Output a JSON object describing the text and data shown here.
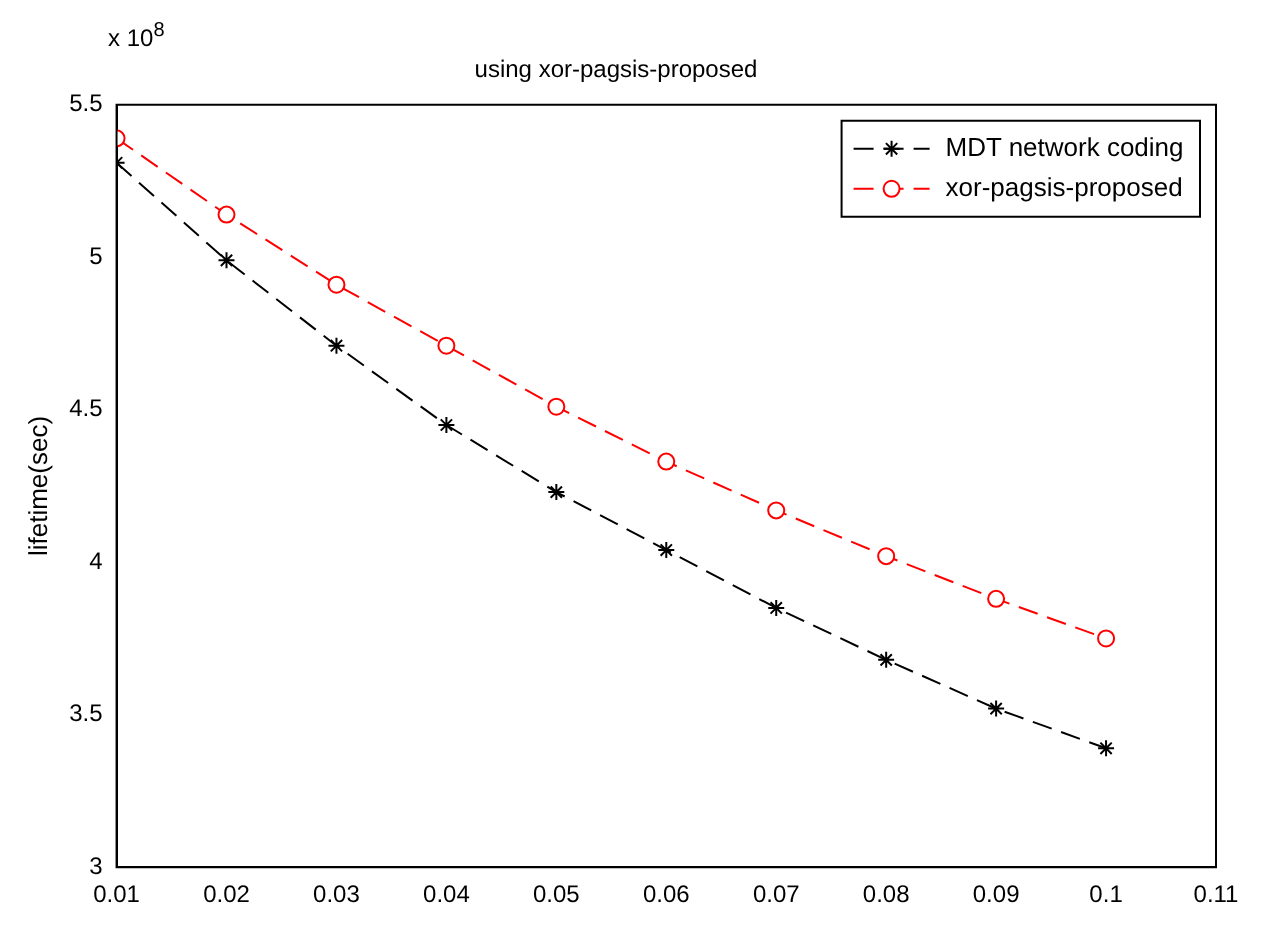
{
  "chart_data": {
    "type": "line",
    "title": "using xor-pagsis-proposed",
    "ylabel": "lifetime(sec)",
    "annotations": [
      "x 10$^{8}$"
    ],
    "x": [
      0.01,
      0.02,
      0.03,
      0.04,
      0.05,
      0.06,
      0.07,
      0.08,
      0.09,
      0.1
    ],
    "series": [
      {
        "name": "MDT network coding",
        "color": "#000000",
        "marker": "cross",
        "line_style": "dashed",
        "values": [
          5.31,
          4.99,
          4.71,
          4.45,
          4.23,
          4.04,
          3.85,
          3.68,
          3.52,
          3.39
        ]
      },
      {
        "name": "xor-pagsis-proposed",
        "color": "#ff0000",
        "marker": "circle",
        "line_style": "dashed",
        "values": [
          5.39,
          5.14,
          4.91,
          4.71,
          4.51,
          4.33,
          4.17,
          4.02,
          3.88,
          3.75
        ]
      }
    ],
    "xlim": [
      0.01,
      0.11
    ],
    "xticks": [
      0.01,
      0.02,
      0.03,
      0.04,
      0.05,
      0.06,
      0.07,
      0.08,
      0.09,
      0.1,
      0.11
    ],
    "ylim": [
      3,
      5.5
    ],
    "yticks": [
      3,
      3.5,
      4,
      4.5,
      5,
      5.5
    ],
    "legend": "top right",
    "grid": false
  }
}
